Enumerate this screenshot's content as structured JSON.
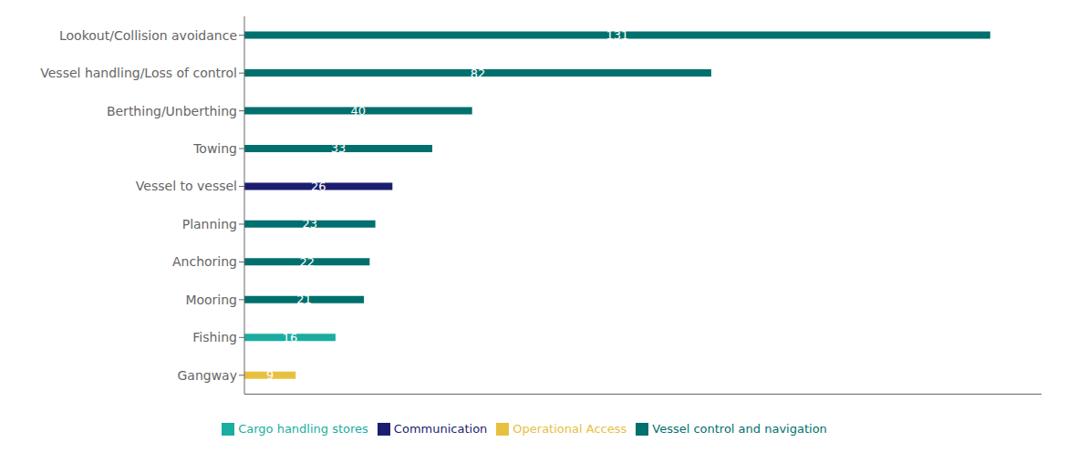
{
  "chart_data": {
    "type": "bar",
    "orientation": "horizontal",
    "stacked": true,
    "data_labels": true,
    "tick_labels": "y",
    "legend": "bottom",
    "categories": [
      "Lookout/Collision avoidance",
      "Vessel handling/Loss of control",
      "Berthing/Unberthing",
      "Towing",
      "Vessel to vessel",
      "Planning",
      "Anchoring",
      "Mooring",
      "Fishing",
      "Gangway"
    ],
    "series": [
      {
        "name": "Cargo handling stores",
        "color": "#1aada0",
        "values": [
          null,
          null,
          null,
          null,
          null,
          null,
          null,
          null,
          16,
          null
        ]
      },
      {
        "name": "Communication",
        "color": "#1b1e6e",
        "values": [
          null,
          null,
          null,
          null,
          26,
          null,
          null,
          null,
          null,
          null
        ]
      },
      {
        "name": "Operational Access",
        "color": "#e8c040",
        "values": [
          null,
          null,
          null,
          null,
          null,
          null,
          null,
          null,
          null,
          9
        ]
      },
      {
        "name": "Vessel control and navigation",
        "color": "#00706e",
        "values": [
          131,
          82,
          40,
          33,
          null,
          23,
          22,
          21,
          null,
          null
        ]
      }
    ],
    "xlim": [
      0,
      140
    ]
  }
}
